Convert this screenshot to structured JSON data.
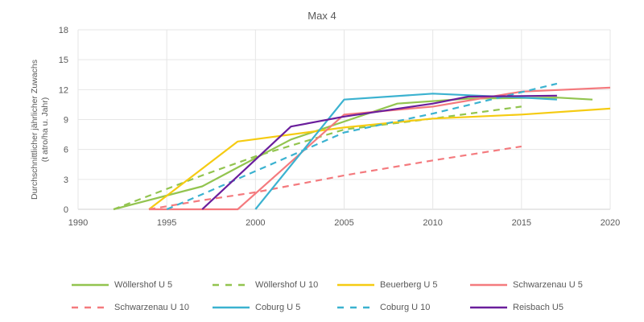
{
  "chart_data": {
    "type": "line",
    "title": "Max 4",
    "xlabel": "",
    "ylabel": "Durchschnittlicher jährlicher Zuwachs",
    "ylabel_unit": "(t atro/ha u. Jahr)",
    "xlim": [
      1990,
      2020
    ],
    "ylim": [
      0,
      18
    ],
    "xticks": [
      "1990",
      "1995",
      "2000",
      "2005",
      "2010",
      "2015",
      "2020"
    ],
    "yticks": [
      "0",
      "3",
      "6",
      "9",
      "12",
      "15",
      "18"
    ],
    "grid": true,
    "legend_position": "bottom",
    "series": [
      {
        "name": "Wöllershof U 5",
        "color": "#92c44f",
        "dash": false,
        "x": [
          1992,
          1997,
          1999,
          2002,
          2005,
          2008,
          2012,
          2017,
          2019
        ],
        "y": [
          0,
          2.3,
          4.2,
          7.0,
          8.8,
          10.6,
          11.1,
          11.2,
          11.0
        ]
      },
      {
        "name": "Wöllershof U 10",
        "color": "#92c44f",
        "dash": true,
        "x": [
          1992,
          1997,
          2000,
          2005,
          2010,
          2015
        ],
        "y": [
          0,
          3.4,
          5.3,
          8.0,
          9.1,
          10.3
        ]
      },
      {
        "name": "Beuerberg U 5",
        "color": "#f5cb12",
        "dash": false,
        "x": [
          1994,
          1999,
          2005,
          2010,
          2015,
          2020
        ],
        "y": [
          0,
          6.8,
          8.2,
          9.1,
          9.5,
          10.1
        ]
      },
      {
        "name": "Schwarzenau U 5",
        "color": "#f47a7e",
        "dash": false,
        "x": [
          1994,
          1999,
          2005,
          2010,
          2015,
          2020
        ],
        "y": [
          0,
          0,
          9.5,
          10.3,
          11.8,
          12.2
        ]
      },
      {
        "name": "Schwarzenau U 10",
        "color": "#f47a7e",
        "dash": true,
        "x": [
          1994,
          1997,
          2000,
          2005,
          2010,
          2015
        ],
        "y": [
          0,
          0.9,
          1.7,
          3.4,
          4.9,
          6.3
        ]
      },
      {
        "name": "Coburg U 5",
        "color": "#3bb2d0",
        "dash": false,
        "x": [
          2000,
          2005,
          2010,
          2015,
          2017
        ],
        "y": [
          0,
          11.0,
          11.6,
          11.2,
          11.0
        ]
      },
      {
        "name": "Coburg U 10",
        "color": "#3bb2d0",
        "dash": true,
        "x": [
          1995,
          1997,
          2005,
          2010,
          2017
        ],
        "y": [
          0,
          1.5,
          7.7,
          9.6,
          12.6
        ]
      },
      {
        "name": "Reisbach U5",
        "color": "#6a1e9c",
        "dash": false,
        "x": [
          1997,
          2002,
          2005,
          2010,
          2012,
          2017
        ],
        "y": [
          0,
          8.3,
          9.3,
          10.6,
          11.3,
          11.4
        ]
      }
    ]
  }
}
